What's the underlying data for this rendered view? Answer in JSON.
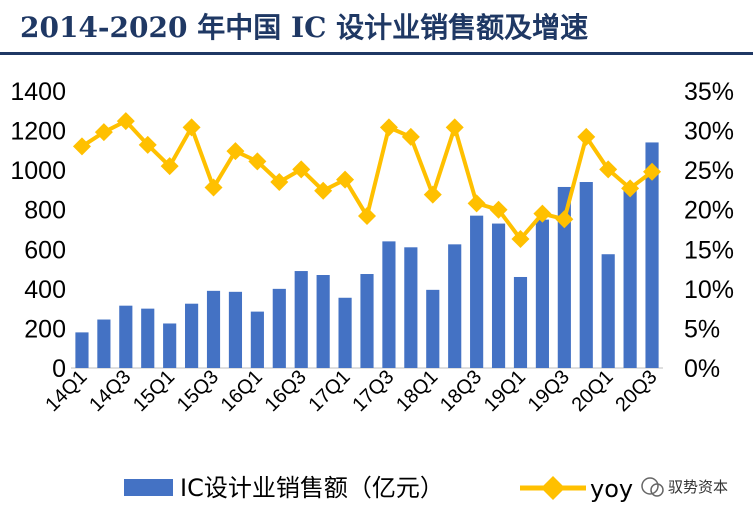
{
  "title": "2014-2020 年中国 IC 设计业销售额及增速",
  "watermark": "驭势资本",
  "chart_data": {
    "type": "bar",
    "categories": [
      "14Q1",
      "14Q2",
      "14Q3",
      "14Q4",
      "15Q1",
      "15Q2",
      "15Q3",
      "15Q4",
      "16Q1",
      "16Q2",
      "16Q3",
      "16Q4",
      "17Q1",
      "17Q2",
      "17Q3",
      "17Q4",
      "18Q1",
      "18Q2",
      "18Q3",
      "18Q4",
      "19Q1",
      "19Q2",
      "19Q3",
      "19Q4",
      "20Q1",
      "20Q2",
      "20Q3"
    ],
    "x_tick_labels": [
      "14Q1",
      "",
      "14Q3",
      "",
      "15Q1",
      "",
      "15Q3",
      "",
      "16Q1",
      "",
      "16Q3",
      "",
      "17Q1",
      "",
      "17Q3",
      "",
      "18Q1",
      "",
      "18Q3",
      "",
      "19Q1",
      "",
      "19Q3",
      "",
      "20Q1",
      "",
      "20Q3"
    ],
    "series": [
      {
        "name": "IC设计业销售额（亿元）",
        "type": "bar",
        "axis": "left",
        "color": "#4472C4",
        "values": [
          180,
          245,
          315,
          300,
          225,
          325,
          390,
          385,
          285,
          400,
          490,
          470,
          355,
          475,
          640,
          610,
          395,
          625,
          770,
          730,
          460,
          750,
          915,
          940,
          575,
          915,
          1140
        ]
      },
      {
        "name": "yoy",
        "type": "line",
        "axis": "right",
        "color": "#FFC000",
        "values": [
          28.0,
          29.8,
          31.2,
          28.2,
          25.5,
          30.4,
          22.8,
          27.4,
          26.1,
          23.5,
          25.1,
          22.4,
          23.8,
          19.2,
          30.4,
          29.2,
          21.9,
          30.4,
          20.8,
          20.0,
          16.3,
          19.5,
          18.8,
          29.2,
          25.1,
          22.7,
          24.8
        ]
      }
    ],
    "y_left": {
      "min": 0,
      "max": 1400,
      "ticks": [
        "0",
        "200",
        "400",
        "600",
        "800",
        "1000",
        "1200",
        "1400"
      ]
    },
    "y_right": {
      "min": 0,
      "max": 35,
      "ticks": [
        "0%",
        "5%",
        "10%",
        "15%",
        "20%",
        "25%",
        "30%",
        "35%"
      ]
    },
    "grid": false,
    "legend": "bottom",
    "xlabel": "",
    "ylabel": ""
  }
}
